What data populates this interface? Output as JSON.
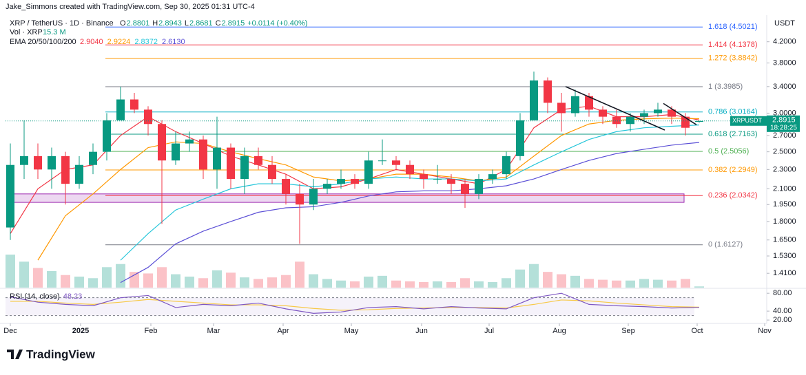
{
  "chart_data": {
    "type": "candlestick",
    "credit": "Jake_Simmons created with TradingView.com, Sep 30, 2025 01:31 UTC-4",
    "symbol": "XRP / TetherUS · 1D · Binance",
    "ohlc_legend": [
      {
        "label": "O",
        "value": "2.8801"
      },
      {
        "label": "H",
        "value": "2.8943"
      },
      {
        "label": "L",
        "value": "2.8681"
      },
      {
        "label": "C",
        "value": "2.8915"
      }
    ],
    "change": "+0.0114 (+0.40%)",
    "volume_legend": {
      "label": "Vol · XRP",
      "value": "15.3 M"
    },
    "ema_legend": {
      "label": "EMA 20/50/100/200"
    },
    "currency": "USDT",
    "brand": "TradingView",
    "up_color": "#089981",
    "down_color": "#f23645",
    "log_scale": true,
    "ylim": [
      1.318,
      4.67
    ],
    "yticks": [
      {
        "value": 4.2,
        "label": "4.2000"
      },
      {
        "value": 3.8,
        "label": "3.8000"
      },
      {
        "value": 3.4,
        "label": "3.4000"
      },
      {
        "value": 3.0,
        "label": "3.0000"
      },
      {
        "value": 2.7,
        "label": "2.7000"
      },
      {
        "value": 2.5,
        "label": "2.5000"
      },
      {
        "value": 2.3,
        "label": "2.3000"
      },
      {
        "value": 2.1,
        "label": "2.1000"
      },
      {
        "value": 1.95,
        "label": "1.9500"
      },
      {
        "value": 1.8,
        "label": "1.8000"
      },
      {
        "value": 1.65,
        "label": "1.6500"
      },
      {
        "value": 1.53,
        "label": "1.5300"
      },
      {
        "value": 1.41,
        "label": "1.4100"
      }
    ],
    "xlim": [
      -0.35,
      54.9
    ],
    "xticks": [
      {
        "value": 0,
        "label": "Dec"
      },
      {
        "value": 5.1,
        "label": "2025"
      },
      {
        "value": 10.2,
        "label": "Feb"
      },
      {
        "value": 14.75,
        "label": "Mar"
      },
      {
        "value": 19.8,
        "label": "Apr"
      },
      {
        "value": 24.75,
        "label": "May"
      },
      {
        "value": 29.85,
        "label": "Jun"
      },
      {
        "value": 34.75,
        "label": "Jul"
      },
      {
        "value": 39.85,
        "label": "Aug"
      },
      {
        "value": 44.85,
        "label": "Sep"
      },
      {
        "value": 49.85,
        "label": "Oct"
      },
      {
        "value": 54.75,
        "label": "Nov"
      }
    ],
    "candles": {
      "open": [
        1.75,
        2.35,
        2.45,
        2.3,
        2.45,
        2.15,
        2.35,
        2.5,
        2.9,
        3.2,
        3.05,
        2.85,
        2.4,
        2.6,
        2.65,
        2.3,
        2.55,
        2.2,
        2.45,
        2.35,
        2.2,
        2.05,
        1.95,
        2.1,
        2.15,
        2.2,
        2.15,
        2.4,
        2.4,
        2.35,
        2.25,
        2.2,
        2.2,
        2.15,
        2.05,
        2.2,
        2.25,
        2.45,
        2.9,
        3.5,
        3.15,
        3.0,
        3.25,
        3.05,
        2.95,
        2.85,
        2.95,
        3.0,
        3.05,
        2.95,
        2.8801
      ],
      "high": [
        2.6,
        2.9,
        2.6,
        2.55,
        2.5,
        2.45,
        2.6,
        3.0,
        3.4,
        3.3,
        3.1,
        2.9,
        2.75,
        2.75,
        2.7,
        2.95,
        2.6,
        2.55,
        2.55,
        2.45,
        2.25,
        2.15,
        2.2,
        2.2,
        2.3,
        2.25,
        2.5,
        2.65,
        2.45,
        2.4,
        2.3,
        2.35,
        2.25,
        2.2,
        2.25,
        2.3,
        2.5,
        3.0,
        3.65,
        3.55,
        3.3,
        3.35,
        3.3,
        3.1,
        3.05,
        3.0,
        3.05,
        3.15,
        3.1,
        3.0,
        2.8943
      ],
      "low": [
        1.65,
        2.2,
        2.2,
        2.1,
        1.95,
        2.1,
        2.25,
        2.4,
        2.9,
        3.0,
        2.7,
        1.78,
        2.35,
        2.5,
        2.2,
        2.1,
        2.1,
        2.05,
        2.3,
        2.15,
        1.95,
        1.62,
        1.9,
        2.05,
        2.1,
        2.1,
        2.1,
        2.35,
        2.3,
        2.2,
        2.1,
        2.15,
        2.05,
        1.92,
        2.0,
        2.15,
        2.2,
        2.4,
        2.9,
        3.0,
        2.75,
        2.95,
        2.95,
        2.85,
        2.8,
        2.75,
        2.85,
        2.95,
        2.85,
        2.7,
        2.8681
      ],
      "close": [
        2.35,
        2.45,
        2.3,
        2.45,
        2.15,
        2.35,
        2.5,
        2.9,
        3.2,
        3.05,
        2.85,
        2.4,
        2.6,
        2.65,
        2.3,
        2.55,
        2.2,
        2.45,
        2.35,
        2.2,
        2.05,
        1.95,
        2.1,
        2.15,
        2.2,
        2.15,
        2.4,
        2.4,
        2.35,
        2.25,
        2.2,
        2.2,
        2.15,
        2.05,
        2.2,
        2.25,
        2.45,
        2.9,
        3.5,
        3.15,
        3.0,
        3.25,
        3.05,
        2.95,
        2.85,
        2.95,
        3.0,
        3.05,
        2.95,
        2.8,
        2.8915
      ]
    },
    "volume": [
      420,
      330,
      250,
      210,
      160,
      140,
      120,
      260,
      300,
      200,
      180,
      260,
      170,
      140,
      120,
      220,
      190,
      130,
      110,
      130,
      160,
      330,
      170,
      110,
      90,
      80,
      140,
      150,
      90,
      80,
      70,
      80,
      70,
      120,
      80,
      70,
      120,
      230,
      300,
      200,
      170,
      150,
      110,
      100,
      90,
      90,
      110,
      100,
      90,
      110,
      15.3
    ],
    "ema_x": [
      0,
      2,
      4,
      6,
      8,
      10,
      12,
      14,
      16,
      18,
      20,
      22,
      24,
      26,
      28,
      30,
      32,
      34,
      36,
      38,
      40,
      42,
      44,
      46,
      48,
      50
    ],
    "series": [
      {
        "name": "2.9040",
        "color": "#f23645",
        "values": [
          1.7,
          2.1,
          2.3,
          2.35,
          2.7,
          2.95,
          2.75,
          2.6,
          2.45,
          2.35,
          2.25,
          2.1,
          2.12,
          2.2,
          2.3,
          2.25,
          2.2,
          2.15,
          2.3,
          2.8,
          3.05,
          3.1,
          2.95,
          2.95,
          2.98,
          2.904
        ]
      },
      {
        "name": "2.9224",
        "color": "#ff9800",
        "values": [
          null,
          1.5,
          1.85,
          2.05,
          2.3,
          2.55,
          2.62,
          2.6,
          2.5,
          2.42,
          2.35,
          2.22,
          2.18,
          2.2,
          2.25,
          2.25,
          2.22,
          2.18,
          2.22,
          2.45,
          2.7,
          2.85,
          2.9,
          2.92,
          2.93,
          2.9224
        ]
      },
      {
        "name": "2.8372",
        "color": "#26c6da",
        "values": [
          null,
          null,
          null,
          null,
          1.5,
          1.7,
          1.9,
          2.0,
          2.1,
          2.15,
          2.15,
          2.12,
          2.15,
          2.2,
          2.22,
          2.2,
          2.2,
          2.18,
          2.2,
          2.35,
          2.5,
          2.65,
          2.75,
          2.8,
          2.82,
          2.8372
        ]
      },
      {
        "name": "2.6130",
        "color": "#5b4fd6",
        "values": [
          null,
          null,
          null,
          null,
          1.35,
          1.45,
          1.62,
          1.72,
          1.8,
          1.88,
          1.92,
          1.93,
          1.97,
          2.03,
          2.07,
          2.08,
          2.08,
          2.1,
          2.13,
          2.2,
          2.3,
          2.4,
          2.48,
          2.53,
          2.58,
          2.613
        ]
      }
    ],
    "fib_levels": [
      {
        "label": "1.618 (4.5021)",
        "value": 4.5021,
        "color": "#2962ff"
      },
      {
        "label": "1.414 (4.1378)",
        "value": 4.1378,
        "color": "#f23645"
      },
      {
        "label": "1.272 (3.8842)",
        "value": 3.8842,
        "color": "#ff9800"
      },
      {
        "label": "1 (3.3985)",
        "value": 3.3985,
        "color": "#787b86"
      },
      {
        "label": "0.786 (3.0164)",
        "value": 3.0164,
        "color": "#00acc1"
      },
      {
        "label": "0.618 (2.7163)",
        "value": 2.7163,
        "color": "#089981"
      },
      {
        "label": "0.5 (2.5056)",
        "value": 2.5056,
        "color": "#4caf50"
      },
      {
        "label": "0.382 (2.2949)",
        "value": 2.2949,
        "color": "#ff9800"
      },
      {
        "label": "0.236 (2.0342)",
        "value": 2.0342,
        "color": "#f23645"
      },
      {
        "label": "0 (1.6127)",
        "value": 1.6127,
        "color": "#787b86"
      }
    ],
    "zone": {
      "range": [
        1.97,
        2.05
      ],
      "color": "#9c27b0"
    },
    "trendlines": [
      [
        [
          40.3,
          3.4
        ],
        [
          47.5,
          2.77
        ]
      ],
      [
        [
          47.4,
          3.14
        ],
        [
          49.8,
          2.84
        ]
      ]
    ],
    "last_price": {
      "symbol": "XRPUSDT",
      "countdown": "18:28:25"
    },
    "rsi": {
      "title": "RSI (14, close)",
      "value_label": "48.23",
      "color": "#7e57c2",
      "ma_color": "#f7c948",
      "ylim": [
        14,
        88
      ],
      "yticks": [
        {
          "value": 80,
          "label": "80.00"
        },
        {
          "value": 40,
          "label": "40.00"
        },
        {
          "value": 20,
          "label": "20.00"
        }
      ],
      "band": [
        30,
        70
      ],
      "values": [
        72,
        60,
        55,
        52,
        70,
        75,
        48,
        55,
        52,
        58,
        45,
        35,
        38,
        48,
        50,
        45,
        50,
        47,
        45,
        70,
        80,
        55,
        52,
        50,
        47,
        48.23
      ],
      "ma": [
        62,
        62,
        58,
        55,
        60,
        66,
        62,
        58,
        54,
        54,
        52,
        46,
        42,
        43,
        46,
        47,
        48,
        48,
        47,
        55,
        65,
        63,
        58,
        54,
        50,
        49
      ]
    }
  }
}
